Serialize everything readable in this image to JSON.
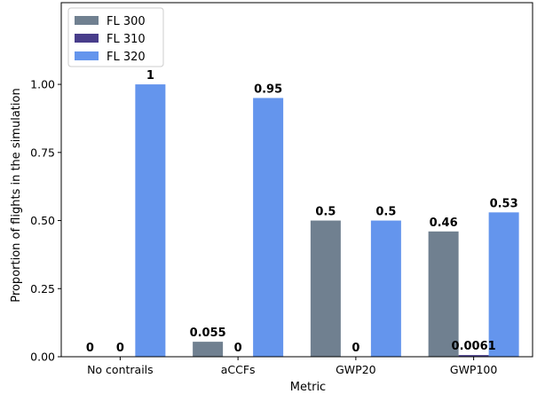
{
  "chart_data": {
    "type": "bar",
    "title": "",
    "xlabel": "Metric",
    "ylabel": "Proportion of flights in the simulation",
    "categories": [
      "No contrails",
      "aCCFs",
      "GWP20",
      "GWP100"
    ],
    "series": [
      {
        "name": "FL 300",
        "color": "#708090",
        "values": [
          0,
          0.055,
          0.5,
          0.46
        ],
        "labels": [
          "0",
          "0.055",
          "0.5",
          "0.46"
        ]
      },
      {
        "name": "FL 310",
        "color": "#483d8b",
        "values": [
          0,
          0,
          0,
          0.0061
        ],
        "labels": [
          "0",
          "0",
          "0",
          "0.0061"
        ]
      },
      {
        "name": "FL 320",
        "color": "#6495ed",
        "values": [
          1,
          0.95,
          0.5,
          0.53
        ],
        "labels": [
          "1",
          "0.95",
          "0.5",
          "0.53"
        ]
      }
    ],
    "ylim": [
      0,
      1.3
    ],
    "yticks": [
      "0.00",
      "0.25",
      "0.50",
      "0.75",
      "1.00"
    ],
    "grid": false,
    "legend_position": "top-left"
  }
}
